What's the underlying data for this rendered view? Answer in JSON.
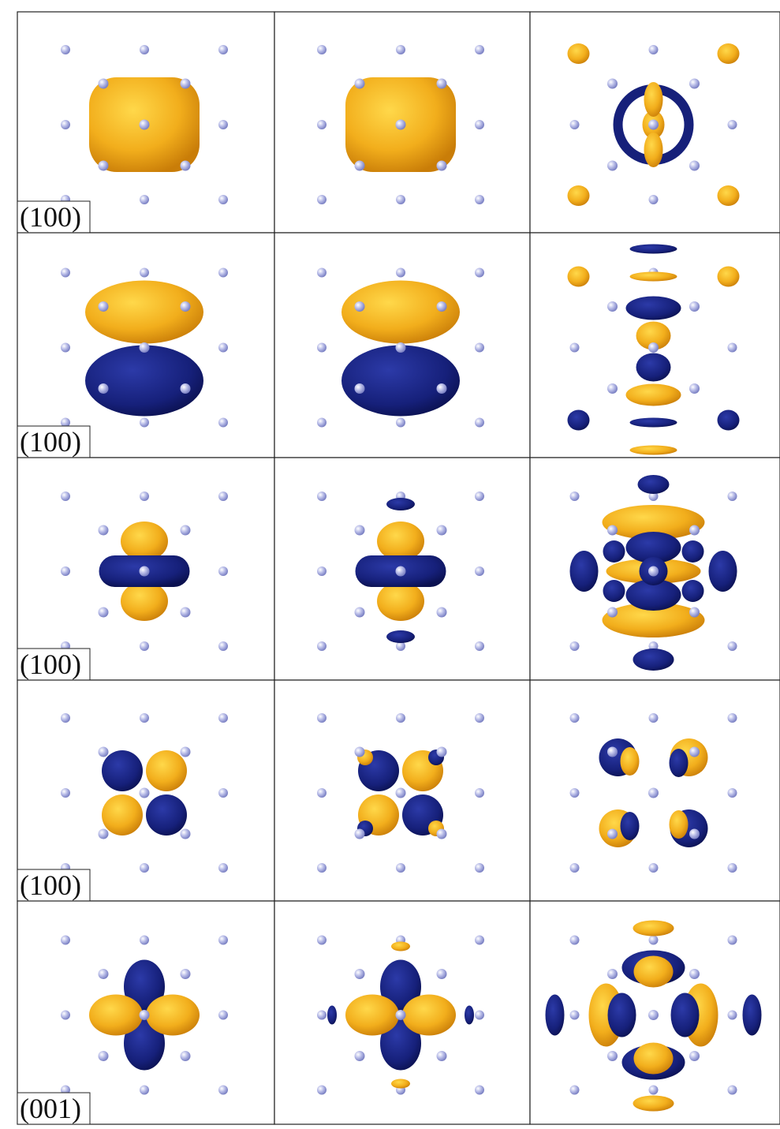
{
  "panels": {
    "rows": [
      {
        "label": "(100)"
      },
      {
        "label": "(100)"
      },
      {
        "label": "(100)"
      },
      {
        "label": "(100)"
      },
      {
        "label": "(001)"
      }
    ]
  }
}
